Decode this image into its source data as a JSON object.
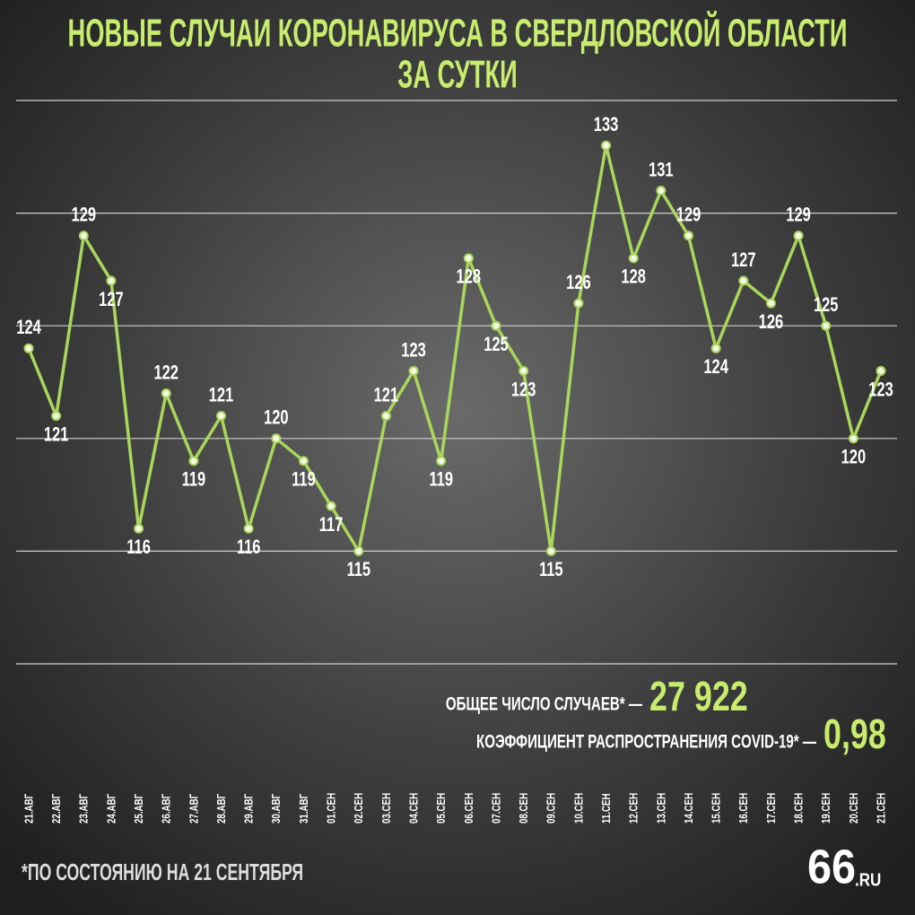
{
  "chart_data": {
    "type": "line",
    "title": [
      "НОВЫЕ СЛУЧАИ КОРОНАВИРУСА В СВЕРДЛОВСКОЙ ОБЛАСТИ",
      "ЗА СУТКИ"
    ],
    "categories": [
      "21.АВГ",
      "22.АВГ",
      "23.АВГ",
      "24.АВГ",
      "25.АВГ",
      "26.АВГ",
      "27.АВГ",
      "28.АВГ",
      "29.АВГ",
      "30.АВГ",
      "31.АВГ",
      "01.СЕН",
      "02.СЕН",
      "03.СЕН",
      "04.СЕН",
      "05.СЕН",
      "06.СЕН",
      "07.СЕН",
      "08.СЕН",
      "09.СЕН",
      "10.СЕН",
      "11.СЕН",
      "12.СЕН",
      "13.СЕН",
      "14.СЕН",
      "15.СЕН",
      "16.СЕН",
      "17.СЕН",
      "18.СЕН",
      "19.СЕН",
      "20.СЕН",
      "21.СЕН"
    ],
    "values": [
      124,
      121,
      129,
      127,
      116,
      122,
      119,
      121,
      116,
      120,
      119,
      117,
      115,
      121,
      123,
      119,
      128,
      125,
      123,
      115,
      126,
      133,
      128,
      131,
      129,
      124,
      127,
      126,
      129,
      125,
      120,
      123
    ],
    "color": "#a9d65b",
    "ylim": [
      110,
      135
    ],
    "yticks": [
      110,
      115,
      120,
      125,
      130,
      135
    ],
    "grid": true,
    "annotations": [
      {
        "label": "ОБЩЕЕ ЧИСЛО СЛУЧАЕВ* —",
        "value": "27 922"
      },
      {
        "label": "КОЭФФИЦИЕНТ РАСПРОСТРАНЕНИЯ COVID-19* —",
        "value": "0,98"
      }
    ],
    "footnote": "*ПО СОСТОЯНИЮ НА 21 СЕНТЯБРЯ",
    "logo": {
      "number": "66",
      "suffix": ".RU"
    }
  }
}
